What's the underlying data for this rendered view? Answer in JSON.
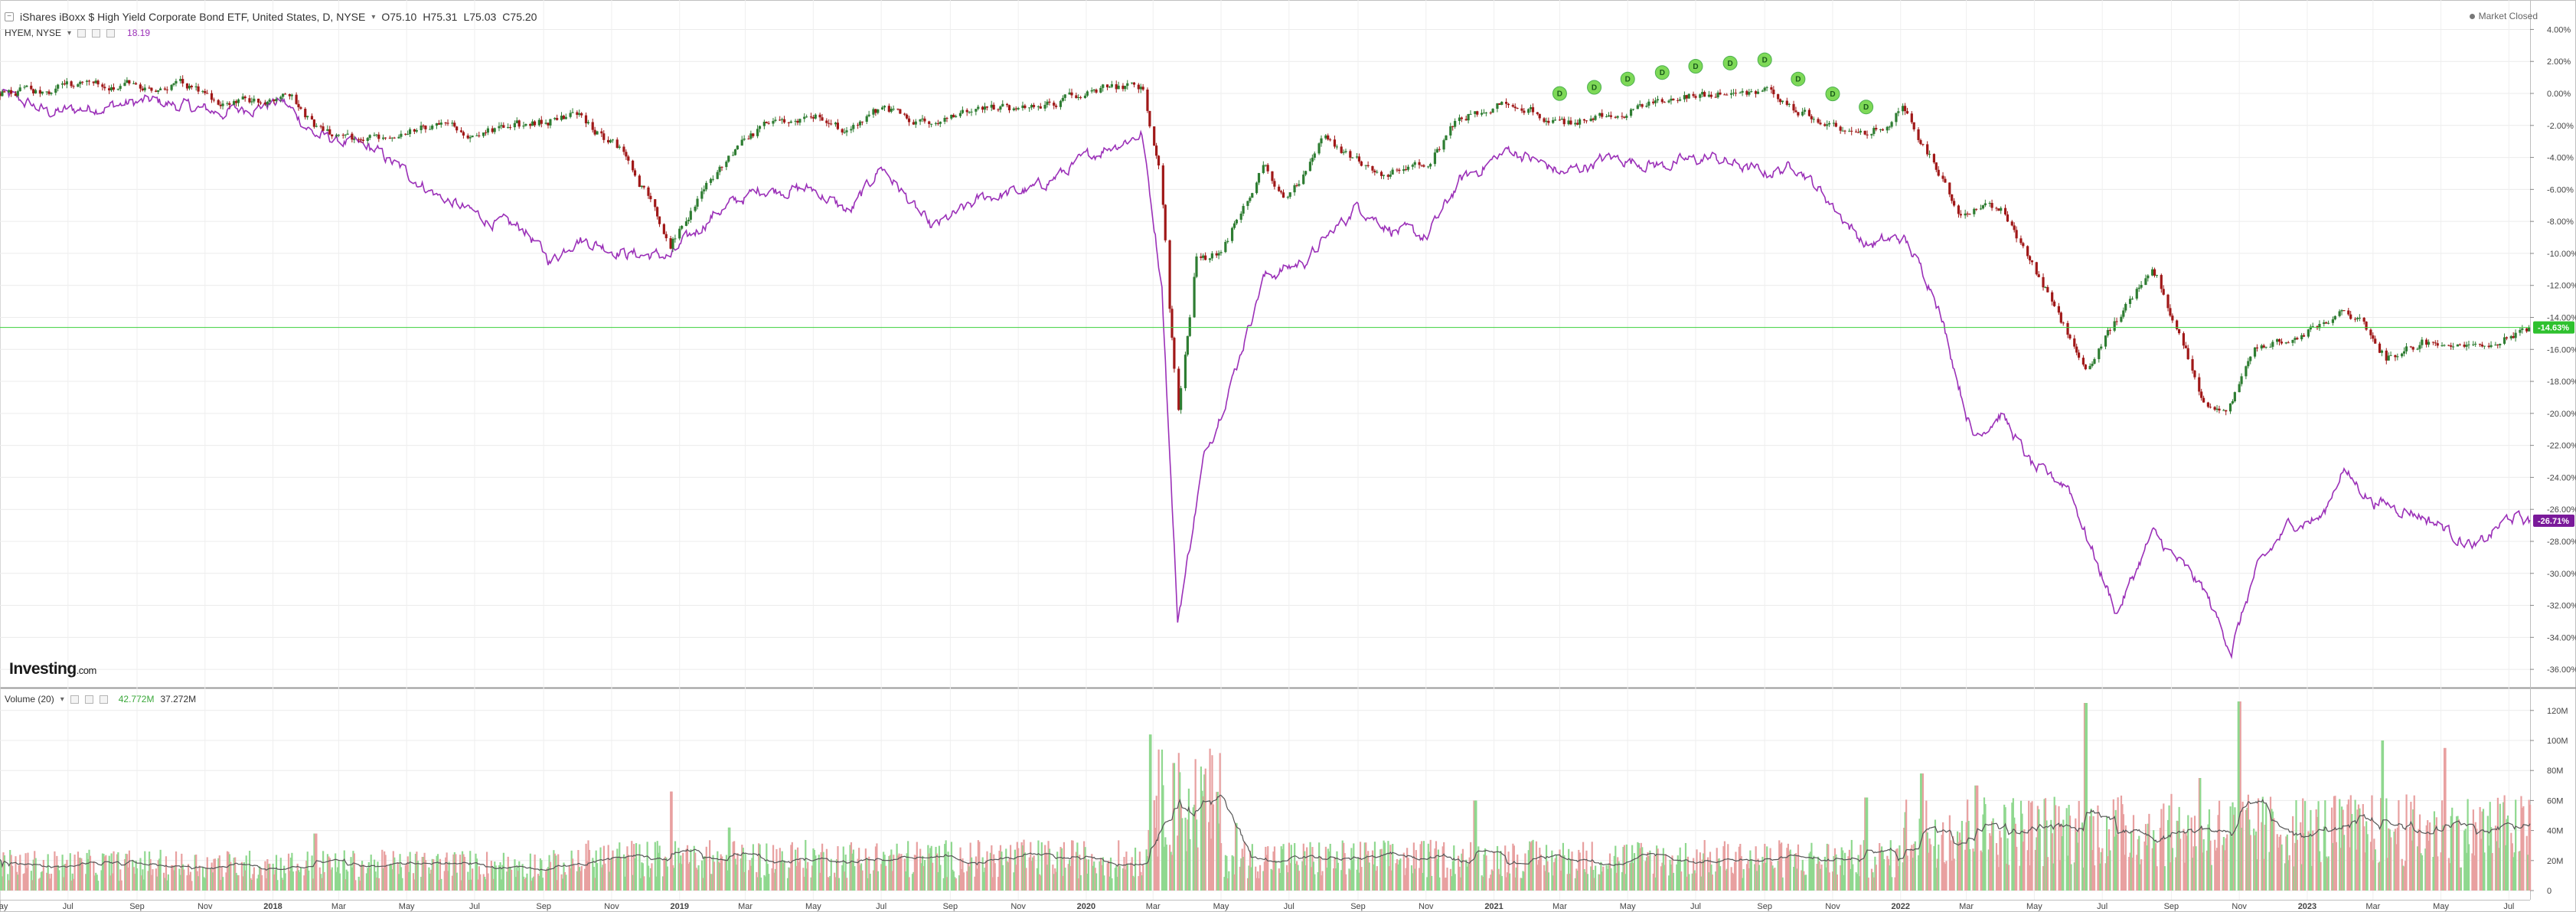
{
  "header": {
    "title": "iShares iBoxx $ High Yield Corporate Bond ETF, United States, D, NYSE",
    "open": "O75.10",
    "high": "H75.31",
    "low": "L75.03",
    "close": "C75.20",
    "compare_symbol": "HYEM, NYSE",
    "compare_value": "18.19",
    "compare_color": "#9b30b8"
  },
  "status": {
    "market": "Market Closed"
  },
  "logo": {
    "text": "Investing",
    "suffix": ".com"
  },
  "volume_header": {
    "label": "Volume (20)",
    "value1": "42.772M",
    "value2": "37.272M"
  },
  "colors": {
    "up": "#2e7d32",
    "down": "#a01818",
    "compare": "#9b30b8",
    "vol_up": "#8fd88f",
    "vol_down": "#e8a0a0",
    "last_line": "#3bd13b",
    "dividend": "#7ed957"
  },
  "last_tags": {
    "main": "-14.63%",
    "compare": "-26.71%"
  },
  "chart_data": [
    {
      "type": "line",
      "title": "",
      "y_unit": "percent change",
      "y_ticks": [
        "4.00%",
        "2.00%",
        "0.00%",
        "-2.00%",
        "-4.00%",
        "-6.00%",
        "-8.00%",
        "-10.00%",
        "-12.00%",
        "-14.00%",
        "-16.00%",
        "-18.00%",
        "-20.00%",
        "-22.00%",
        "-24.00%",
        "-26.00%",
        "-28.00%",
        "-30.00%",
        "-32.00%",
        "-34.00%",
        "-36.00%"
      ],
      "ylim": [
        -37,
        4.5
      ],
      "x_ticks": [
        "May",
        "Jul",
        "Sep",
        "Nov",
        "2018",
        "Mar",
        "May",
        "Jul",
        "Sep",
        "Nov",
        "2019",
        "Mar",
        "May",
        "Jul",
        "Sep",
        "Nov",
        "2020",
        "Mar",
        "May",
        "Jul",
        "Sep",
        "Nov",
        "2021",
        "Mar",
        "May",
        "Jul",
        "Sep",
        "Nov",
        "2022",
        "Mar",
        "May",
        "Jul",
        "Sep",
        "Nov",
        "2023",
        "Mar",
        "May",
        "Jul"
      ],
      "x_domain": [
        "2017-05-01",
        "2023-07-20"
      ],
      "series": [
        {
          "name": "iShares iBoxx $ High Yield Corporate Bond ETF",
          "style": "candlestick",
          "points": [
            [
              "2017-05-01",
              0
            ],
            [
              "2017-06-15",
              0.3
            ],
            [
              "2017-08-01",
              0.7
            ],
            [
              "2017-09-15",
              0.3
            ],
            [
              "2017-10-15",
              0.5
            ],
            [
              "2017-11-15",
              -0.6
            ],
            [
              "2017-12-20",
              -0.4
            ],
            [
              "2018-01-15",
              0
            ],
            [
              "2018-02-08",
              -2.2
            ],
            [
              "2018-03-20",
              -3.0
            ],
            [
              "2018-05-15",
              -2.0
            ],
            [
              "2018-06-30",
              -2.5
            ],
            [
              "2018-08-15",
              -2.0
            ],
            [
              "2018-10-01",
              -1.3
            ],
            [
              "2018-11-15",
              -4.0
            ],
            [
              "2018-12-24",
              -9.3
            ],
            [
              "2019-02-01",
              -5.0
            ],
            [
              "2019-03-15",
              -2.2
            ],
            [
              "2019-05-01",
              -1.3
            ],
            [
              "2019-06-03",
              -2.5
            ],
            [
              "2019-07-01",
              -1.0
            ],
            [
              "2019-08-15",
              -2.0
            ],
            [
              "2019-10-01",
              -1.0
            ],
            [
              "2019-11-15",
              -1.0
            ],
            [
              "2020-01-10",
              0.3
            ],
            [
              "2020-02-20",
              0.3
            ],
            [
              "2020-03-09",
              -6.0
            ],
            [
              "2020-03-23",
              -20.5
            ],
            [
              "2020-04-09",
              -10.5
            ],
            [
              "2020-05-01",
              -10.0
            ],
            [
              "2020-06-08",
              -4.5
            ],
            [
              "2020-06-29",
              -6.5
            ],
            [
              "2020-08-01",
              -3.0
            ],
            [
              "2020-09-24",
              -5.0
            ],
            [
              "2020-11-02",
              -4.5
            ],
            [
              "2020-12-01",
              -1.5
            ],
            [
              "2021-01-15",
              -0.5
            ],
            [
              "2021-03-04",
              -2.0
            ],
            [
              "2021-05-01",
              -1.0
            ],
            [
              "2021-07-01",
              -0.2
            ],
            [
              "2021-09-01",
              0.2
            ],
            [
              "2021-10-01",
              -1.0
            ],
            [
              "2021-11-30",
              -2.8
            ],
            [
              "2022-01-03",
              -1.0
            ],
            [
              "2022-02-24",
              -7.5
            ],
            [
              "2022-04-01",
              -7.0
            ],
            [
              "2022-05-20",
              -13.5
            ],
            [
              "2022-06-16",
              -17.5
            ],
            [
              "2022-08-15",
              -10.5
            ],
            [
              "2022-09-29",
              -19.0
            ],
            [
              "2022-10-20",
              -20.0
            ],
            [
              "2022-11-15",
              -16.0
            ],
            [
              "2023-01-15",
              -14.5
            ],
            [
              "2023-02-02",
              -13.0
            ],
            [
              "2023-03-13",
              -16.5
            ],
            [
              "2023-04-15",
              -15.5
            ],
            [
              "2023-05-15",
              -16.0
            ],
            [
              "2023-06-15",
              -15.5
            ],
            [
              "2023-07-20",
              -14.63
            ]
          ]
        },
        {
          "name": "HYEM, NYSE",
          "style": "line",
          "points": [
            [
              "2017-05-01",
              0
            ],
            [
              "2017-06-15",
              -1.2
            ],
            [
              "2017-08-01",
              -0.8
            ],
            [
              "2017-09-15",
              -0.5
            ],
            [
              "2017-11-15",
              -1.2
            ],
            [
              "2018-01-10",
              -0.5
            ],
            [
              "2018-02-08",
              -2.6
            ],
            [
              "2018-04-01",
              -3.5
            ],
            [
              "2018-06-01",
              -6.5
            ],
            [
              "2018-07-15",
              -8.0
            ],
            [
              "2018-08-15",
              -8.5
            ],
            [
              "2018-09-07",
              -10.5
            ],
            [
              "2018-10-01",
              -9.0
            ],
            [
              "2018-11-15",
              -10.0
            ],
            [
              "2018-12-24",
              -10.2
            ],
            [
              "2019-02-01",
              -7.5
            ],
            [
              "2019-03-15",
              -6.0
            ],
            [
              "2019-05-01",
              -6.0
            ],
            [
              "2019-06-03",
              -7.5
            ],
            [
              "2019-07-01",
              -4.5
            ],
            [
              "2019-08-15",
              -8.5
            ],
            [
              "2019-10-01",
              -6.5
            ],
            [
              "2019-11-15",
              -6.0
            ],
            [
              "2020-01-15",
              -3.5
            ],
            [
              "2020-02-20",
              -2.5
            ],
            [
              "2020-03-09",
              -12.0
            ],
            [
              "2020-03-23",
              -33.0
            ],
            [
              "2020-04-15",
              -23.0
            ],
            [
              "2020-05-15",
              -17.0
            ],
            [
              "2020-06-08",
              -11.5
            ],
            [
              "2020-07-15",
              -10.5
            ],
            [
              "2020-09-01",
              -7.0
            ],
            [
              "2020-10-01",
              -8.5
            ],
            [
              "2020-11-02",
              -9.0
            ],
            [
              "2020-12-01",
              -5.5
            ],
            [
              "2021-01-15",
              -3.5
            ],
            [
              "2021-03-04",
              -5.0
            ],
            [
              "2021-04-15",
              -4.0
            ],
            [
              "2021-06-01",
              -4.5
            ],
            [
              "2021-07-15",
              -4.0
            ],
            [
              "2021-09-01",
              -5.0
            ],
            [
              "2021-10-01",
              -4.5
            ],
            [
              "2021-11-01",
              -7.0
            ],
            [
              "2021-12-01",
              -9.5
            ],
            [
              "2022-01-03",
              -9.0
            ],
            [
              "2022-02-01",
              -12.5
            ],
            [
              "2022-03-07",
              -21.5
            ],
            [
              "2022-04-01",
              -20.0
            ],
            [
              "2022-05-01",
              -23.5
            ],
            [
              "2022-06-01",
              -24.5
            ],
            [
              "2022-06-16",
              -27.5
            ],
            [
              "2022-07-14",
              -32.5
            ],
            [
              "2022-08-15",
              -27.5
            ],
            [
              "2022-09-30",
              -31.0
            ],
            [
              "2022-10-25",
              -34.8
            ],
            [
              "2022-11-15",
              -30.0
            ],
            [
              "2022-12-15",
              -27.0
            ],
            [
              "2023-01-15",
              -26.5
            ],
            [
              "2023-02-01",
              -23.5
            ],
            [
              "2023-03-01",
              -25.5
            ],
            [
              "2023-04-01",
              -26.0
            ],
            [
              "2023-05-01",
              -27.0
            ],
            [
              "2023-06-01",
              -28.5
            ],
            [
              "2023-07-01",
              -26.5
            ],
            [
              "2023-07-20",
              -26.71
            ]
          ]
        }
      ],
      "dividends": {
        "label": "D",
        "dates": [
          "2021-03-01",
          "2021-04-01",
          "2021-05-01",
          "2021-06-01",
          "2021-07-01",
          "2021-08-01",
          "2021-09-01",
          "2021-10-01",
          "2021-11-01",
          "2021-12-01"
        ]
      }
    },
    {
      "type": "bar",
      "title": "Volume (20)",
      "y_ticks": [
        "120M",
        "100M",
        "80M",
        "60M",
        "40M",
        "20M",
        "0"
      ],
      "ylim": [
        0,
        125
      ],
      "y_unit": "millions",
      "baseline_m": 16,
      "moving_average_name": "Volume (20)",
      "spikes": [
        [
          "2018-02-08",
          38
        ],
        [
          "2018-12-24",
          66
        ],
        [
          "2019-02-15",
          42
        ],
        [
          "2020-02-28",
          104
        ],
        [
          "2020-03-20",
          85
        ],
        [
          "2020-05-15",
          45
        ],
        [
          "2020-12-15",
          60
        ],
        [
          "2021-12-01",
          62
        ],
        [
          "2022-01-20",
          78
        ],
        [
          "2022-03-10",
          70
        ],
        [
          "2022-06-16",
          125
        ],
        [
          "2022-09-26",
          75
        ],
        [
          "2022-11-01",
          126
        ],
        [
          "2023-03-10",
          100
        ],
        [
          "2023-05-05",
          95
        ],
        [
          "2023-07-01",
          50
        ]
      ]
    }
  ]
}
